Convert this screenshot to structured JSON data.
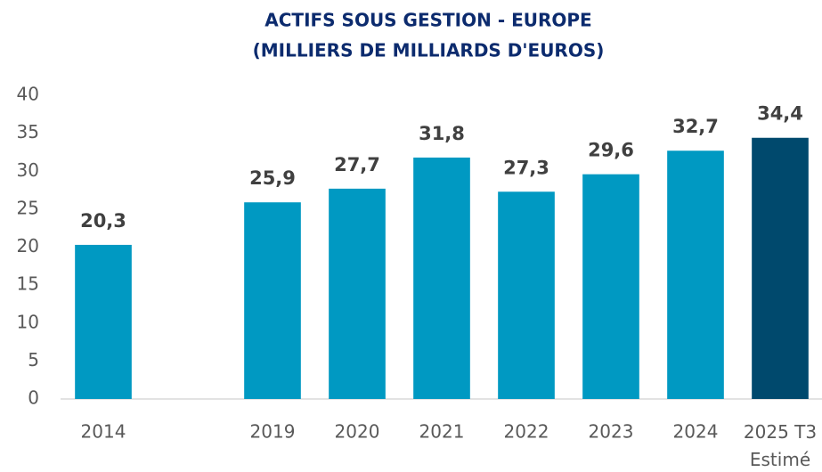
{
  "chart_data": {
    "type": "bar",
    "title": "ACTIFS SOUS GESTION - EUROPE",
    "subtitle": "(MILLIERS DE MILLIARDS D'EUROS)",
    "categories": [
      "2014",
      null,
      "2019",
      "2020",
      "2021",
      "2022",
      "2023",
      "2024",
      "2025 T3\nEstimé"
    ],
    "values": [
      20.3,
      null,
      25.9,
      27.7,
      31.8,
      27.3,
      29.6,
      32.7,
      34.4
    ],
    "value_labels": [
      "20,3",
      null,
      "25,9",
      "27,7",
      "31,8",
      "27,3",
      "29,6",
      "32,7",
      "34,4"
    ],
    "colors": [
      "#0099c2",
      null,
      "#0099c2",
      "#0099c2",
      "#0099c2",
      "#0099c2",
      "#0099c2",
      "#0099c2",
      "#00496d"
    ],
    "ylim": [
      0,
      40
    ],
    "yticks": [
      0,
      5,
      10,
      15,
      20,
      25,
      30,
      35,
      40
    ],
    "grid": false
  }
}
